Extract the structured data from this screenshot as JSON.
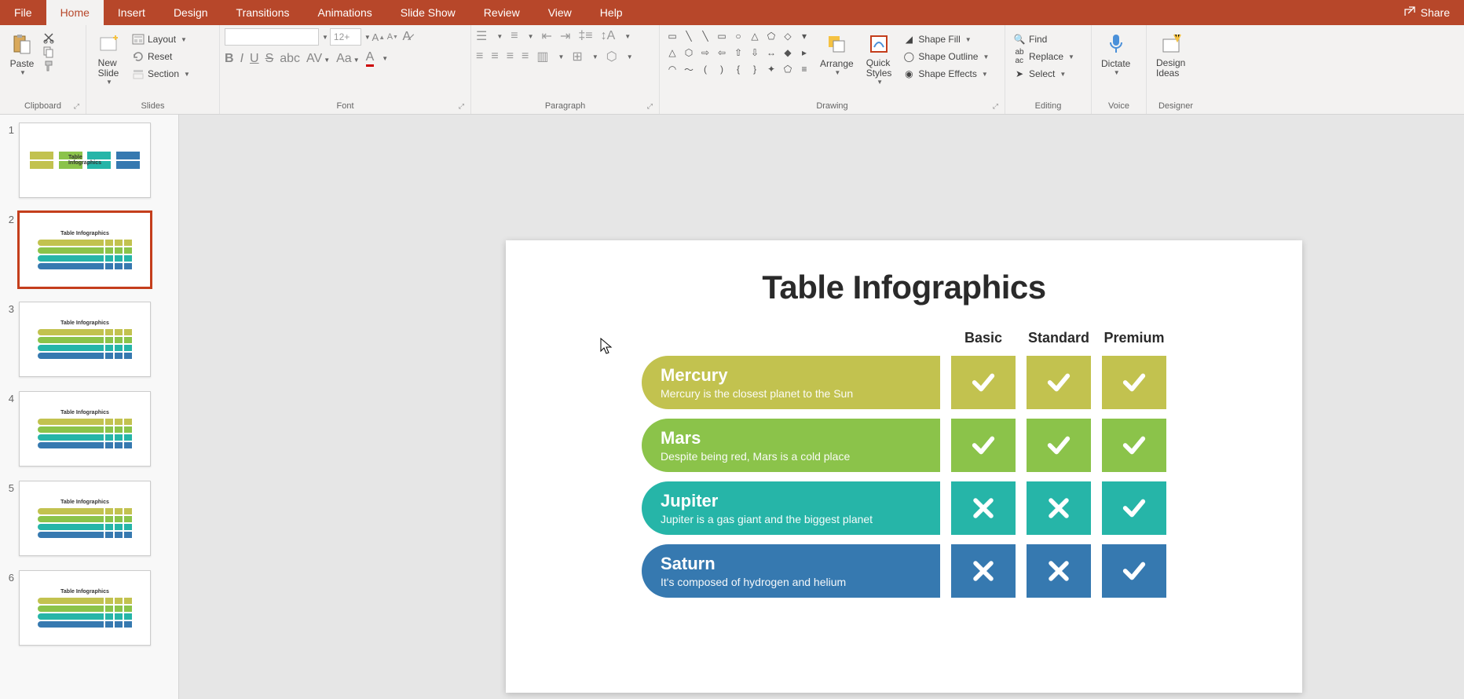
{
  "tabs": {
    "items": [
      "File",
      "Home",
      "Insert",
      "Design",
      "Transitions",
      "Animations",
      "Slide Show",
      "Review",
      "View",
      "Help"
    ],
    "active_index": 1,
    "share": "Share"
  },
  "ribbon": {
    "clipboard": {
      "label": "Clipboard",
      "paste": "Paste"
    },
    "slides": {
      "label": "Slides",
      "new_slide": "New\nSlide",
      "layout": "Layout",
      "reset": "Reset",
      "section": "Section"
    },
    "font": {
      "label": "Font",
      "name_placeholder": "",
      "size_placeholder": "12+"
    },
    "paragraph": {
      "label": "Paragraph"
    },
    "drawing": {
      "label": "Drawing",
      "arrange": "Arrange",
      "quick_styles": "Quick\nStyles",
      "shape_fill": "Shape Fill",
      "shape_outline": "Shape Outline",
      "shape_effects": "Shape Effects"
    },
    "editing": {
      "label": "Editing",
      "find": "Find",
      "replace": "Replace",
      "select": "Select"
    },
    "voice": {
      "label": "Voice",
      "dictate": "Dictate"
    },
    "designer": {
      "label": "Designer",
      "design_ideas": "Design\nIdeas"
    }
  },
  "thumbnails": {
    "selected_index": 1,
    "title_text": "Table Infographics",
    "count": 6
  },
  "slide": {
    "title": "Table Infographics",
    "columns": [
      "Basic",
      "Standard",
      "Premium"
    ],
    "rows": [
      {
        "title": "Mercury",
        "desc": "Mercury is the closest planet to the Sun",
        "color": "#c2c24f",
        "cells": [
          "check",
          "check",
          "check"
        ]
      },
      {
        "title": "Mars",
        "desc": "Despite being red, Mars is a cold place",
        "color": "#8bc34a",
        "cells": [
          "check",
          "check",
          "check"
        ]
      },
      {
        "title": "Jupiter",
        "desc": "Jupiter is a gas giant and the biggest planet",
        "color": "#26b5a8",
        "cells": [
          "cross",
          "cross",
          "check"
        ]
      },
      {
        "title": "Saturn",
        "desc": "It's composed of hydrogen and helium",
        "color": "#3679b0",
        "cells": [
          "cross",
          "cross",
          "check"
        ]
      }
    ],
    "icon_stroke": "#ffffff",
    "background": "#ffffff"
  },
  "colors": {
    "brand": "#b7472a",
    "ribbon_bg": "#f3f2f1",
    "canvas_bg": "#e6e6e6"
  }
}
